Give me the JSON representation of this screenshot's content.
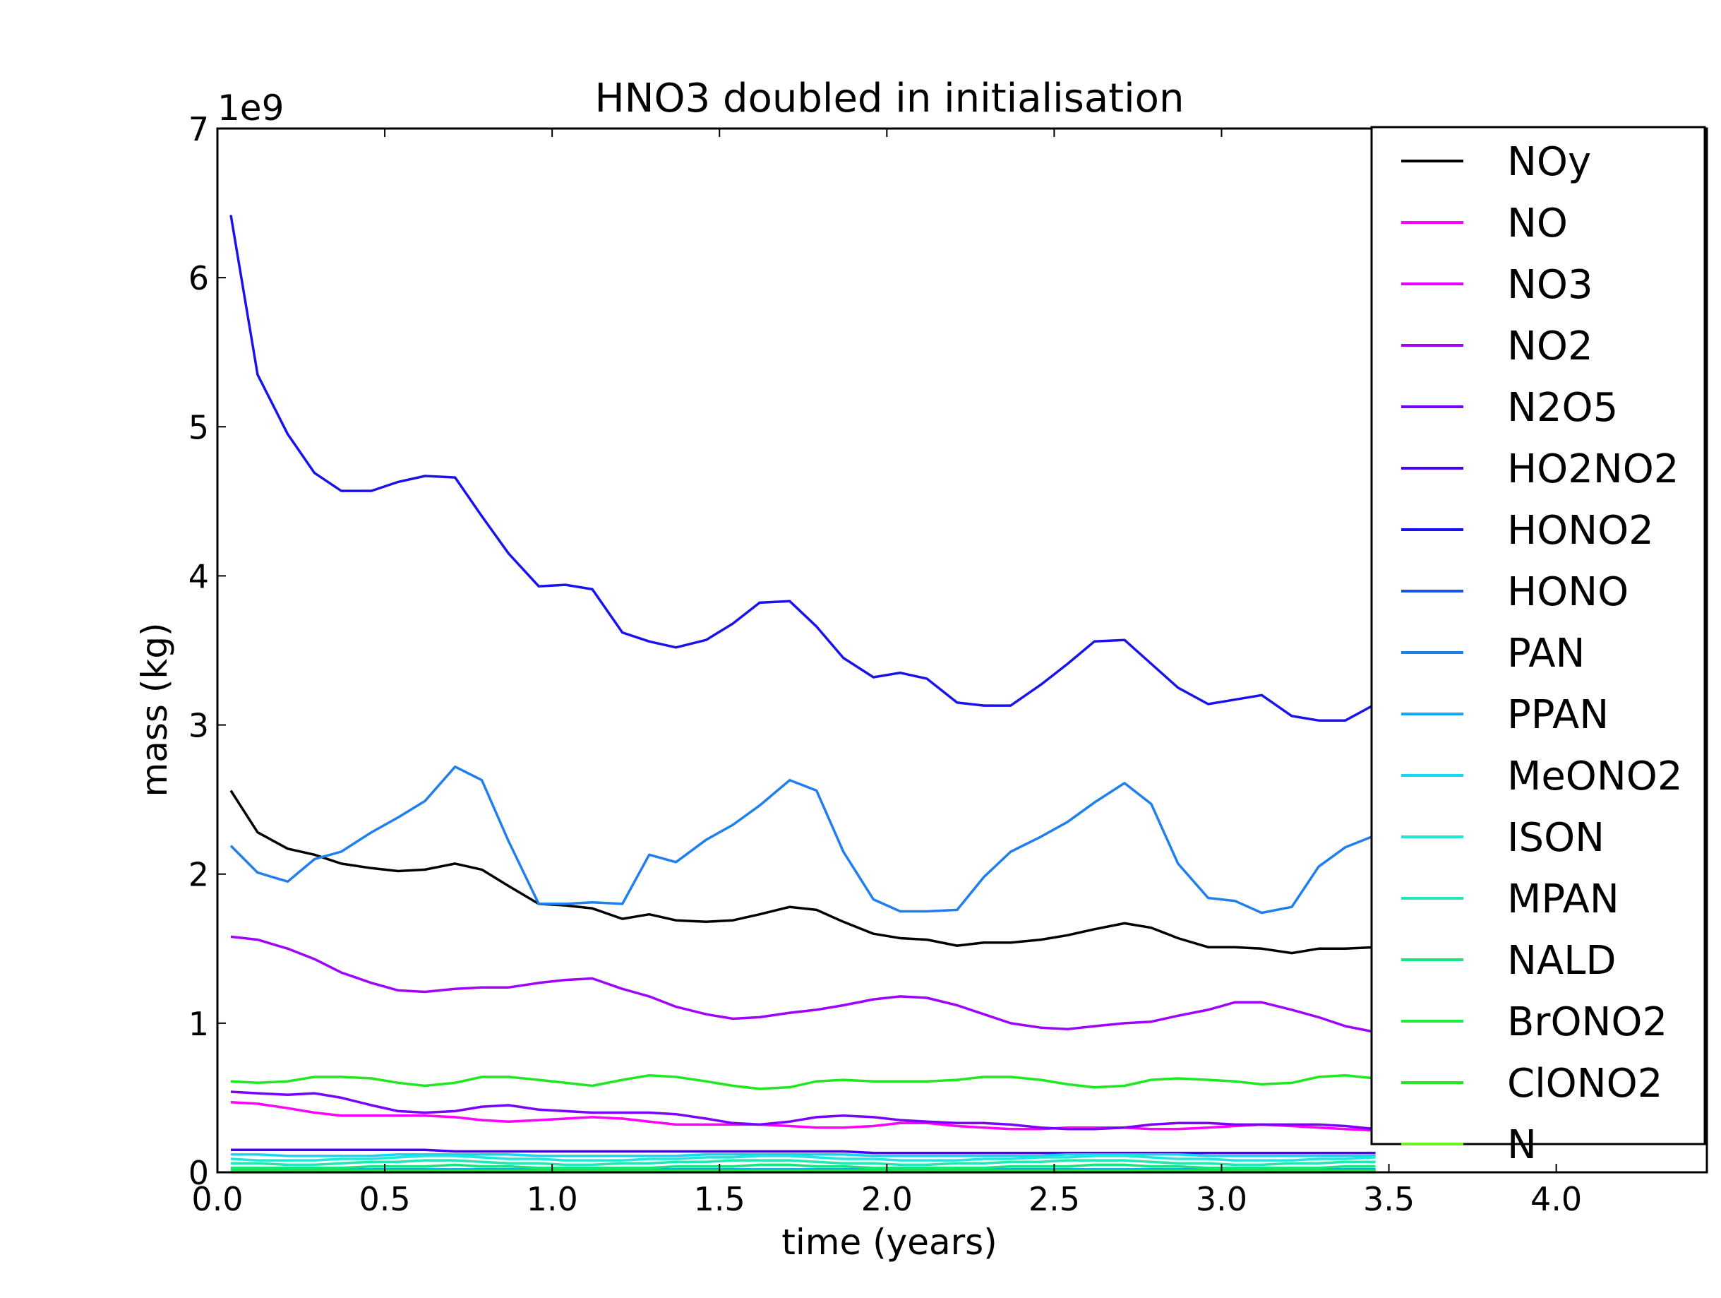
{
  "chart_data": {
    "type": "line",
    "title": "HNO3 doubled in initialisation",
    "xlabel": "time (years)",
    "ylabel": "mass (kg)",
    "y_multiplier_label": "1e9",
    "xlim": [
      0.0,
      4.45
    ],
    "ylim": [
      0,
      7
    ],
    "xticks": [
      "0.0",
      "0.5",
      "1.0",
      "1.5",
      "2.0",
      "2.5",
      "3.0",
      "3.5",
      "4.0"
    ],
    "yticks": [
      "0",
      "1",
      "2",
      "3",
      "4",
      "5",
      "6",
      "7"
    ],
    "grid": false,
    "legend_position": "right",
    "x": [
      0.04,
      0.12,
      0.21,
      0.29,
      0.37,
      0.46,
      0.54,
      0.62,
      0.71,
      0.79,
      0.87,
      0.96,
      1.04,
      1.12,
      1.21,
      1.29,
      1.37,
      1.46,
      1.54,
      1.62,
      1.71,
      1.79,
      1.87,
      1.96,
      2.04,
      2.12,
      2.21,
      2.29,
      2.37,
      2.46,
      2.54,
      2.62,
      2.71,
      2.79,
      2.87,
      2.96,
      3.04,
      3.12,
      3.21,
      3.29,
      3.37,
      3.46
    ],
    "series": [
      {
        "name": "NOy",
        "color": "#000000",
        "values": [
          2.56,
          2.28,
          2.17,
          2.13,
          2.07,
          2.04,
          2.02,
          2.03,
          2.07,
          2.03,
          1.92,
          1.8,
          1.79,
          1.77,
          1.7,
          1.73,
          1.69,
          1.68,
          1.69,
          1.73,
          1.78,
          1.76,
          1.68,
          1.6,
          1.57,
          1.56,
          1.52,
          1.54,
          1.54,
          1.56,
          1.59,
          1.63,
          1.67,
          1.64,
          1.57,
          1.51,
          1.51,
          1.5,
          1.47,
          1.5,
          1.5,
          1.51
        ]
      },
      {
        "name": "NO",
        "color": "#ff00ff",
        "values": [
          0.47,
          0.46,
          0.43,
          0.4,
          0.38,
          0.38,
          0.38,
          0.38,
          0.37,
          0.35,
          0.34,
          0.35,
          0.36,
          0.37,
          0.36,
          0.34,
          0.32,
          0.32,
          0.32,
          0.32,
          0.31,
          0.3,
          0.3,
          0.31,
          0.33,
          0.33,
          0.31,
          0.3,
          0.29,
          0.29,
          0.3,
          0.3,
          0.3,
          0.29,
          0.29,
          0.3,
          0.31,
          0.32,
          0.31,
          0.3,
          0.29,
          0.28
        ]
      },
      {
        "name": "NO3",
        "color": "#e400ff",
        "values": [
          0.02,
          0.02,
          0.02,
          0.02,
          0.02,
          0.02,
          0.02,
          0.02,
          0.02,
          0.02,
          0.02,
          0.02,
          0.02,
          0.02,
          0.02,
          0.02,
          0.02,
          0.02,
          0.02,
          0.02,
          0.02,
          0.02,
          0.02,
          0.02,
          0.02,
          0.02,
          0.02,
          0.02,
          0.02,
          0.02,
          0.02,
          0.02,
          0.02,
          0.02,
          0.02,
          0.02,
          0.02,
          0.02,
          0.02,
          0.02,
          0.02,
          0.02
        ]
      },
      {
        "name": "NO2",
        "color": "#a000ff",
        "values": [
          1.58,
          1.56,
          1.5,
          1.43,
          1.34,
          1.27,
          1.22,
          1.21,
          1.23,
          1.24,
          1.24,
          1.27,
          1.29,
          1.3,
          1.23,
          1.18,
          1.11,
          1.06,
          1.03,
          1.04,
          1.07,
          1.09,
          1.12,
          1.16,
          1.18,
          1.17,
          1.12,
          1.06,
          1.0,
          0.97,
          0.96,
          0.98,
          1.0,
          1.01,
          1.05,
          1.09,
          1.14,
          1.14,
          1.09,
          1.04,
          0.98,
          0.94
        ]
      },
      {
        "name": "N2O5",
        "color": "#7a00ff",
        "values": [
          0.54,
          0.53,
          0.52,
          0.53,
          0.5,
          0.45,
          0.41,
          0.4,
          0.41,
          0.44,
          0.45,
          0.42,
          0.41,
          0.4,
          0.4,
          0.4,
          0.39,
          0.36,
          0.33,
          0.32,
          0.34,
          0.37,
          0.38,
          0.37,
          0.35,
          0.34,
          0.33,
          0.33,
          0.32,
          0.3,
          0.29,
          0.29,
          0.3,
          0.32,
          0.33,
          0.33,
          0.32,
          0.32,
          0.32,
          0.32,
          0.31,
          0.29
        ]
      },
      {
        "name": "HO2NO2",
        "color": "#4a00f5",
        "values": [
          0.15,
          0.15,
          0.15,
          0.15,
          0.15,
          0.15,
          0.15,
          0.15,
          0.14,
          0.14,
          0.14,
          0.14,
          0.14,
          0.14,
          0.14,
          0.14,
          0.14,
          0.14,
          0.14,
          0.14,
          0.14,
          0.14,
          0.14,
          0.13,
          0.13,
          0.13,
          0.13,
          0.13,
          0.13,
          0.13,
          0.13,
          0.13,
          0.13,
          0.13,
          0.13,
          0.13,
          0.13,
          0.13,
          0.13,
          0.13,
          0.13,
          0.13
        ]
      },
      {
        "name": "HONO2",
        "color": "#1a12ee",
        "values": [
          6.42,
          5.35,
          4.95,
          4.69,
          4.57,
          4.57,
          4.63,
          4.67,
          4.66,
          4.4,
          4.15,
          3.93,
          3.94,
          3.91,
          3.62,
          3.56,
          3.52,
          3.57,
          3.68,
          3.82,
          3.83,
          3.66,
          3.45,
          3.32,
          3.35,
          3.31,
          3.15,
          3.13,
          3.13,
          3.27,
          3.41,
          3.56,
          3.57,
          3.41,
          3.25,
          3.14,
          3.17,
          3.2,
          3.06,
          3.03,
          3.03,
          3.14
        ]
      },
      {
        "name": "HONO",
        "color": "#1f4fef",
        "values": [
          0.01,
          0.01,
          0.01,
          0.01,
          0.01,
          0.01,
          0.01,
          0.01,
          0.01,
          0.01,
          0.01,
          0.01,
          0.01,
          0.01,
          0.01,
          0.01,
          0.01,
          0.01,
          0.01,
          0.01,
          0.01,
          0.01,
          0.01,
          0.01,
          0.01,
          0.01,
          0.01,
          0.01,
          0.01,
          0.01,
          0.01,
          0.01,
          0.01,
          0.01,
          0.01,
          0.01,
          0.01,
          0.01,
          0.01,
          0.01,
          0.01,
          0.01
        ]
      },
      {
        "name": "PAN",
        "color": "#1f7fee",
        "values": [
          2.19,
          2.01,
          1.95,
          2.1,
          2.15,
          2.28,
          2.38,
          2.49,
          2.72,
          2.63,
          2.22,
          1.8,
          1.8,
          1.81,
          1.8,
          2.13,
          2.08,
          2.23,
          2.33,
          2.46,
          2.63,
          2.56,
          2.15,
          1.83,
          1.75,
          1.75,
          1.76,
          1.98,
          2.15,
          2.25,
          2.35,
          2.48,
          2.61,
          2.47,
          2.07,
          1.84,
          1.82,
          1.74,
          1.78,
          2.05,
          2.18,
          2.26
        ]
      },
      {
        "name": "PPAN",
        "color": "#17a6f2",
        "values": [
          0.02,
          0.02,
          0.02,
          0.02,
          0.02,
          0.02,
          0.02,
          0.02,
          0.02,
          0.02,
          0.02,
          0.02,
          0.02,
          0.02,
          0.02,
          0.02,
          0.02,
          0.02,
          0.02,
          0.02,
          0.02,
          0.02,
          0.02,
          0.02,
          0.02,
          0.02,
          0.02,
          0.02,
          0.02,
          0.02,
          0.02,
          0.02,
          0.02,
          0.02,
          0.02,
          0.02,
          0.02,
          0.02,
          0.02,
          0.02,
          0.02,
          0.02
        ]
      },
      {
        "name": "MeONO2",
        "color": "#12d8f5",
        "values": [
          0.12,
          0.12,
          0.11,
          0.11,
          0.11,
          0.11,
          0.12,
          0.12,
          0.12,
          0.12,
          0.12,
          0.11,
          0.11,
          0.11,
          0.11,
          0.11,
          0.11,
          0.12,
          0.12,
          0.12,
          0.12,
          0.12,
          0.12,
          0.11,
          0.11,
          0.11,
          0.11,
          0.11,
          0.11,
          0.11,
          0.12,
          0.12,
          0.12,
          0.12,
          0.12,
          0.11,
          0.11,
          0.11,
          0.11,
          0.11,
          0.11,
          0.11
        ]
      },
      {
        "name": "ISON",
        "color": "#1fe8d6",
        "values": [
          0.09,
          0.08,
          0.08,
          0.08,
          0.09,
          0.09,
          0.1,
          0.11,
          0.11,
          0.1,
          0.09,
          0.09,
          0.08,
          0.08,
          0.08,
          0.09,
          0.09,
          0.1,
          0.1,
          0.11,
          0.11,
          0.1,
          0.09,
          0.09,
          0.08,
          0.08,
          0.08,
          0.09,
          0.09,
          0.1,
          0.1,
          0.11,
          0.11,
          0.1,
          0.09,
          0.09,
          0.08,
          0.08,
          0.08,
          0.09,
          0.09,
          0.1
        ]
      },
      {
        "name": "MPAN",
        "color": "#1fe8b0",
        "values": [
          0.06,
          0.06,
          0.05,
          0.05,
          0.06,
          0.07,
          0.07,
          0.08,
          0.08,
          0.07,
          0.06,
          0.06,
          0.05,
          0.05,
          0.06,
          0.06,
          0.07,
          0.07,
          0.08,
          0.08,
          0.08,
          0.07,
          0.06,
          0.06,
          0.05,
          0.05,
          0.06,
          0.06,
          0.07,
          0.07,
          0.08,
          0.08,
          0.08,
          0.07,
          0.06,
          0.06,
          0.05,
          0.05,
          0.06,
          0.06,
          0.07,
          0.07
        ]
      },
      {
        "name": "NALD",
        "color": "#14e67a",
        "values": [
          0.03,
          0.03,
          0.03,
          0.03,
          0.03,
          0.04,
          0.04,
          0.04,
          0.05,
          0.04,
          0.04,
          0.03,
          0.03,
          0.03,
          0.03,
          0.03,
          0.04,
          0.04,
          0.04,
          0.05,
          0.05,
          0.04,
          0.04,
          0.03,
          0.03,
          0.03,
          0.03,
          0.03,
          0.04,
          0.04,
          0.04,
          0.05,
          0.05,
          0.04,
          0.04,
          0.03,
          0.03,
          0.03,
          0.03,
          0.03,
          0.04,
          0.04
        ]
      },
      {
        "name": "BrONO2",
        "color": "#14f03c",
        "values": [
          0.01,
          0.01,
          0.01,
          0.01,
          0.01,
          0.01,
          0.01,
          0.01,
          0.01,
          0.01,
          0.01,
          0.01,
          0.01,
          0.01,
          0.01,
          0.01,
          0.01,
          0.01,
          0.01,
          0.01,
          0.01,
          0.01,
          0.01,
          0.01,
          0.01,
          0.01,
          0.01,
          0.01,
          0.01,
          0.01,
          0.01,
          0.01,
          0.01,
          0.01,
          0.01,
          0.01,
          0.01,
          0.01,
          0.01,
          0.01,
          0.01,
          0.01
        ]
      },
      {
        "name": "ClONO2",
        "color": "#1ee81e",
        "values": [
          0.61,
          0.6,
          0.61,
          0.64,
          0.64,
          0.63,
          0.6,
          0.58,
          0.6,
          0.64,
          0.64,
          0.62,
          0.6,
          0.58,
          0.62,
          0.65,
          0.64,
          0.61,
          0.58,
          0.56,
          0.57,
          0.61,
          0.62,
          0.61,
          0.61,
          0.61,
          0.62,
          0.64,
          0.64,
          0.62,
          0.59,
          0.57,
          0.58,
          0.62,
          0.63,
          0.62,
          0.61,
          0.59,
          0.6,
          0.64,
          0.65,
          0.63
        ]
      },
      {
        "name": "N",
        "color": "#6cf01e",
        "values": [
          0.0,
          0.0,
          0.0,
          0.0,
          0.0,
          0.0,
          0.0,
          0.0,
          0.0,
          0.0,
          0.0,
          0.0,
          0.0,
          0.0,
          0.0,
          0.0,
          0.0,
          0.0,
          0.0,
          0.0,
          0.0,
          0.0,
          0.0,
          0.0,
          0.0,
          0.0,
          0.0,
          0.0,
          0.0,
          0.0,
          0.0,
          0.0,
          0.0,
          0.0,
          0.0,
          0.0,
          0.0,
          0.0,
          0.0,
          0.0,
          0.0,
          0.0
        ]
      }
    ]
  }
}
